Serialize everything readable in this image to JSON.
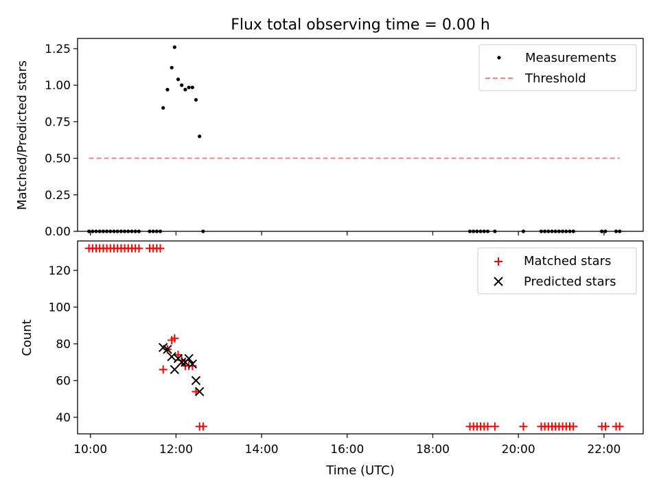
{
  "title": "Flux total observing time = 0.00 h",
  "chart_data": [
    {
      "type": "scatter",
      "ylabel": "Matched/Predicted stars",
      "ylim": [
        0.0,
        1.32
      ],
      "xlim": [
        "09:42",
        "22:55"
      ],
      "yticks": [
        "0.00",
        "0.25",
        "0.50",
        "0.75",
        "1.00",
        "1.25"
      ],
      "legend_position": "top-right",
      "series": [
        {
          "name": "Measurements",
          "color": "#000000",
          "marker": "dot",
          "points": [
            [
              "09:58",
              0.0
            ],
            [
              "10:03",
              0.0
            ],
            [
              "10:08",
              0.0
            ],
            [
              "10:13",
              0.0
            ],
            [
              "10:18",
              0.0
            ],
            [
              "10:23",
              0.0
            ],
            [
              "10:28",
              0.0
            ],
            [
              "10:33",
              0.0
            ],
            [
              "10:38",
              0.0
            ],
            [
              "10:43",
              0.0
            ],
            [
              "10:48",
              0.0
            ],
            [
              "10:53",
              0.0
            ],
            [
              "10:58",
              0.0
            ],
            [
              "11:03",
              0.0
            ],
            [
              "11:08",
              0.0
            ],
            [
              "11:23",
              0.0
            ],
            [
              "11:28",
              0.0
            ],
            [
              "11:33",
              0.0
            ],
            [
              "11:38",
              0.0
            ],
            [
              "11:42",
              0.845
            ],
            [
              "11:48",
              0.97
            ],
            [
              "11:54",
              1.12
            ],
            [
              "11:58",
              1.26
            ],
            [
              "12:03",
              1.04
            ],
            [
              "12:08",
              1.0
            ],
            [
              "12:13",
              0.97
            ],
            [
              "12:18",
              0.985
            ],
            [
              "12:23",
              0.985
            ],
            [
              "12:28",
              0.9
            ],
            [
              "12:33",
              0.65
            ],
            [
              "12:38",
              0.0
            ],
            [
              "18:52",
              0.0
            ],
            [
              "18:57",
              0.0
            ],
            [
              "19:02",
              0.0
            ],
            [
              "19:07",
              0.0
            ],
            [
              "19:12",
              0.0
            ],
            [
              "19:17",
              0.0
            ],
            [
              "19:27",
              0.0
            ],
            [
              "20:07",
              0.0
            ],
            [
              "20:32",
              0.0
            ],
            [
              "20:37",
              0.0
            ],
            [
              "20:42",
              0.0
            ],
            [
              "20:47",
              0.0
            ],
            [
              "20:52",
              0.0
            ],
            [
              "20:57",
              0.0
            ],
            [
              "21:02",
              0.0
            ],
            [
              "21:07",
              0.0
            ],
            [
              "21:12",
              0.0
            ],
            [
              "21:17",
              0.0
            ],
            [
              "21:57",
              0.0
            ],
            [
              "22:02",
              0.0
            ],
            [
              "22:17",
              0.0
            ],
            [
              "22:22",
              0.0
            ]
          ]
        },
        {
          "name": "Threshold",
          "color": "#ff7f7f",
          "style": "dashed",
          "points": [
            [
              "09:58",
              0.5
            ],
            [
              "22:22",
              0.5
            ]
          ]
        }
      ]
    },
    {
      "type": "scatter",
      "xlabel": "Time (UTC)",
      "ylabel": "Count",
      "ylim": [
        31,
        136
      ],
      "xlim": [
        "09:42",
        "22:55"
      ],
      "xticks": [
        "10:00",
        "12:00",
        "14:00",
        "16:00",
        "18:00",
        "20:00",
        "22:00"
      ],
      "yticks": [
        "40",
        "60",
        "80",
        "100",
        "120"
      ],
      "legend_position": "top-right",
      "series": [
        {
          "name": "Matched stars",
          "color": "#ff0000",
          "marker": "plus",
          "points": [
            [
              "09:58",
              132
            ],
            [
              "10:03",
              132
            ],
            [
              "10:08",
              132
            ],
            [
              "10:13",
              132
            ],
            [
              "10:18",
              132
            ],
            [
              "10:23",
              132
            ],
            [
              "10:28",
              132
            ],
            [
              "10:33",
              132
            ],
            [
              "10:38",
              132
            ],
            [
              "10:43",
              132
            ],
            [
              "10:48",
              132
            ],
            [
              "10:53",
              132
            ],
            [
              "10:58",
              132
            ],
            [
              "11:03",
              132
            ],
            [
              "11:08",
              132
            ],
            [
              "11:23",
              132
            ],
            [
              "11:28",
              132
            ],
            [
              "11:33",
              132
            ],
            [
              "11:38",
              132
            ],
            [
              "11:42",
              66
            ],
            [
              "11:48",
              77
            ],
            [
              "11:54",
              82
            ],
            [
              "11:58",
              83
            ],
            [
              "12:03",
              74
            ],
            [
              "12:08",
              71
            ],
            [
              "12:13",
              68
            ],
            [
              "12:18",
              68
            ],
            [
              "12:23",
              68
            ],
            [
              "12:28",
              54
            ],
            [
              "12:33",
              35
            ],
            [
              "12:38",
              35
            ],
            [
              "18:52",
              35
            ],
            [
              "18:57",
              35
            ],
            [
              "19:02",
              35
            ],
            [
              "19:07",
              35
            ],
            [
              "19:12",
              35
            ],
            [
              "19:17",
              35
            ],
            [
              "19:27",
              35
            ],
            [
              "20:07",
              35
            ],
            [
              "20:32",
              35
            ],
            [
              "20:37",
              35
            ],
            [
              "20:42",
              35
            ],
            [
              "20:47",
              35
            ],
            [
              "20:52",
              35
            ],
            [
              "20:57",
              35
            ],
            [
              "21:02",
              35
            ],
            [
              "21:07",
              35
            ],
            [
              "21:12",
              35
            ],
            [
              "21:17",
              35
            ],
            [
              "21:57",
              35
            ],
            [
              "22:02",
              35
            ],
            [
              "22:17",
              35
            ],
            [
              "22:22",
              35
            ]
          ]
        },
        {
          "name": "Predicted stars",
          "color": "#000000",
          "marker": "x",
          "points": [
            [
              "11:42",
              78
            ],
            [
              "11:48",
              77
            ],
            [
              "11:54",
              73
            ],
            [
              "11:58",
              66
            ],
            [
              "12:03",
              72
            ],
            [
              "12:08",
              70
            ],
            [
              "12:13",
              70
            ],
            [
              "12:18",
              72
            ],
            [
              "12:23",
              69
            ],
            [
              "12:28",
              60
            ],
            [
              "12:33",
              54
            ]
          ]
        }
      ]
    }
  ]
}
